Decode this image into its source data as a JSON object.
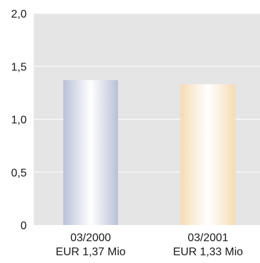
{
  "chart_data": {
    "type": "bar",
    "title": "",
    "xlabel": "",
    "ylabel": "",
    "ylim": [
      0,
      2.0
    ],
    "yticks": [
      0,
      0.5,
      1.0,
      1.5,
      2.0
    ],
    "ytick_labels": [
      "0",
      "0,5",
      "1,0",
      "1,5",
      "2,0"
    ],
    "grid": true,
    "categories": [
      {
        "label_line1": "03/2000",
        "label_line2": "EUR 1,37 Mio"
      },
      {
        "label_line1": "03/2001",
        "label_line2": "EUR 1,33 Mio"
      }
    ],
    "values": [
      1.37,
      1.33
    ],
    "colors": {
      "plot_background": "#e5e5e5",
      "gridline": "#ffffff",
      "text": "#1a1a1a",
      "bar1_edge": "#b9c1d8",
      "bar1_center": "#ffffff",
      "bar2_edge": "#f5dcb4",
      "bar2_center": "#ffffff"
    }
  }
}
